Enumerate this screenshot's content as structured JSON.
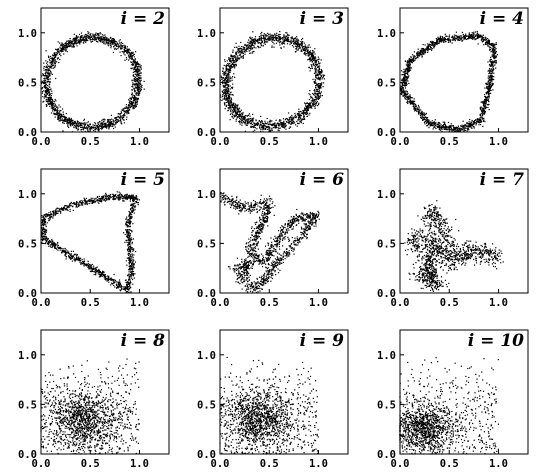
{
  "figure": {
    "background": "#ffffff",
    "marker_color": "#000000"
  },
  "chart_data": [
    {
      "type": "scatter",
      "title": "i = 2",
      "xlim": [
        0,
        1.3
      ],
      "ylim": [
        0,
        1.25
      ],
      "xticks": [
        "0.0",
        "0.5",
        "1.0"
      ],
      "yticks": [
        "0.0",
        "0.5",
        "1.0"
      ],
      "shape": "ellipse",
      "curve": {
        "cx": 0.52,
        "cy": 0.5,
        "rx": 0.47,
        "ry": 0.45,
        "tilt": 0.35
      },
      "spread": 0.025,
      "points": 1800
    },
    {
      "type": "scatter",
      "title": "i = 3",
      "xlim": [
        0,
        1.3
      ],
      "ylim": [
        0,
        1.25
      ],
      "xticks": [
        "0.0",
        "0.5",
        "1.0"
      ],
      "yticks": [
        "0.0",
        "0.5",
        "1.0"
      ],
      "shape": "ellipse",
      "curve": {
        "cx": 0.53,
        "cy": 0.5,
        "rx": 0.48,
        "ry": 0.44,
        "tilt": 0.4
      },
      "spread": 0.03,
      "points": 1800
    },
    {
      "type": "scatter",
      "title": "i = 4",
      "xlim": [
        0,
        1.3
      ],
      "ylim": [
        0,
        1.25
      ],
      "xticks": [
        "0.0",
        "0.5",
        "1.0"
      ],
      "yticks": [
        "0.0",
        "0.5",
        "1.0"
      ],
      "shape": "polygon",
      "vertices": [
        [
          0.02,
          0.42
        ],
        [
          0.1,
          0.72
        ],
        [
          0.4,
          0.93
        ],
        [
          0.8,
          0.97
        ],
        [
          0.96,
          0.86
        ],
        [
          0.92,
          0.5
        ],
        [
          0.82,
          0.12
        ],
        [
          0.6,
          0.02
        ],
        [
          0.3,
          0.08
        ],
        [
          0.02,
          0.42
        ]
      ],
      "spread": 0.018,
      "points": 1600
    },
    {
      "type": "scatter",
      "title": "i = 5",
      "xlim": [
        0,
        1.3
      ],
      "ylim": [
        0,
        1.25
      ],
      "xticks": [
        "0.0",
        "0.5",
        "1.0"
      ],
      "yticks": [
        "0.0",
        "0.5",
        "1.0"
      ],
      "shape": "polygon",
      "vertices": [
        [
          0.02,
          0.75
        ],
        [
          0.3,
          0.88
        ],
        [
          0.7,
          0.97
        ],
        [
          0.96,
          0.97
        ],
        [
          0.88,
          0.68
        ],
        [
          0.92,
          0.25
        ],
        [
          0.88,
          0.02
        ],
        [
          0.6,
          0.2
        ],
        [
          0.3,
          0.38
        ],
        [
          0.02,
          0.55
        ],
        [
          0.02,
          0.75
        ]
      ],
      "spread": 0.018,
      "points": 1400
    },
    {
      "type": "scatter",
      "title": "i = 6",
      "xlim": [
        0,
        1.3
      ],
      "ylim": [
        0,
        1.25
      ],
      "xticks": [
        "0.0",
        "0.5",
        "1.0"
      ],
      "yticks": [
        "0.0",
        "0.5",
        "1.0"
      ],
      "shape": "polygon",
      "vertices": [
        [
          0.0,
          0.98
        ],
        [
          0.25,
          0.85
        ],
        [
          0.5,
          0.9
        ],
        [
          0.45,
          0.75
        ],
        [
          0.35,
          0.55
        ],
        [
          0.3,
          0.4
        ],
        [
          0.45,
          0.3
        ],
        [
          0.6,
          0.55
        ],
        [
          0.75,
          0.75
        ],
        [
          0.98,
          0.78
        ],
        [
          0.85,
          0.6
        ],
        [
          0.72,
          0.45
        ],
        [
          0.55,
          0.28
        ],
        [
          0.48,
          0.15
        ],
        [
          0.35,
          0.05
        ],
        [
          0.2,
          0.15
        ],
        [
          0.3,
          0.3
        ],
        [
          0.15,
          0.25
        ]
      ],
      "spread": 0.028,
      "points": 1500
    },
    {
      "type": "scatter",
      "title": "i = 7",
      "xlim": [
        0,
        1.3
      ],
      "ylim": [
        0,
        1.25
      ],
      "xticks": [
        "0.0",
        "0.5",
        "1.0"
      ],
      "yticks": [
        "0.0",
        "0.5",
        "1.0"
      ],
      "shape": "polygon",
      "vertices": [
        [
          0.3,
          0.05
        ],
        [
          0.35,
          0.45
        ],
        [
          0.3,
          0.85
        ],
        [
          0.45,
          0.65
        ],
        [
          0.55,
          0.35
        ],
        [
          0.75,
          0.4
        ],
        [
          1.0,
          0.35
        ],
        [
          0.7,
          0.45
        ],
        [
          0.5,
          0.3
        ],
        [
          0.3,
          0.55
        ],
        [
          0.1,
          0.55
        ],
        [
          0.3,
          0.35
        ],
        [
          0.25,
          0.15
        ],
        [
          0.4,
          0.1
        ],
        [
          0.15,
          0.2
        ]
      ],
      "spread": 0.045,
      "points": 1300
    },
    {
      "type": "scatter",
      "title": "i = 8",
      "xlim": [
        0,
        1.3
      ],
      "ylim": [
        0,
        1.25
      ],
      "xticks": [
        "0.0",
        "0.5",
        "1.0"
      ],
      "yticks": [
        "0.0",
        "0.5",
        "1.0"
      ],
      "shape": "cloud",
      "cloud": {
        "cx": 0.45,
        "cy": 0.35,
        "sx": 0.3,
        "sy": 0.25,
        "xmax": 1.0,
        "ymax": 1.0
      },
      "points": 1500
    },
    {
      "type": "scatter",
      "title": "i = 9",
      "xlim": [
        0,
        1.3
      ],
      "ylim": [
        0,
        1.25
      ],
      "xticks": [
        "0.0",
        "0.5",
        "1.0"
      ],
      "yticks": [
        "0.0",
        "0.5",
        "1.0"
      ],
      "shape": "cloud",
      "cloud": {
        "cx": 0.4,
        "cy": 0.35,
        "sx": 0.28,
        "sy": 0.25,
        "xmax": 1.0,
        "ymax": 1.0
      },
      "points": 1500
    },
    {
      "type": "scatter",
      "title": "i = 10",
      "xlim": [
        0,
        1.3
      ],
      "ylim": [
        0,
        1.25
      ],
      "xticks": [
        "0.0",
        "0.5",
        "1.0"
      ],
      "yticks": [
        "0.0",
        "0.5",
        "1.0"
      ],
      "shape": "cloud",
      "cloud": {
        "cx": 0.25,
        "cy": 0.25,
        "sx": 0.25,
        "sy": 0.2,
        "xmax": 1.0,
        "ymax": 1.0
      },
      "points": 1400
    }
  ]
}
